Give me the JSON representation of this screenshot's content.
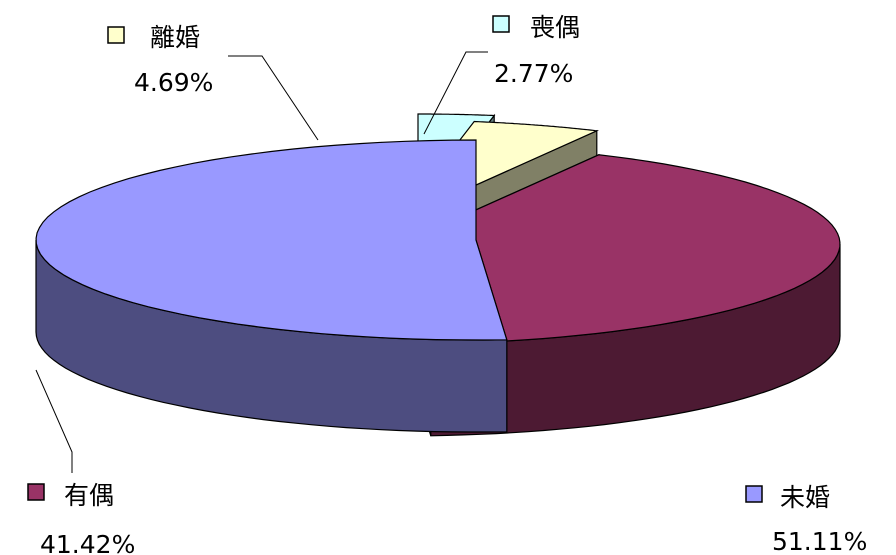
{
  "chart_data": {
    "type": "pie",
    "style": "3d-exploded",
    "title": "",
    "categories": [
      "未婚",
      "有偶",
      "離婚",
      "喪偶"
    ],
    "values": [
      51.11,
      41.42,
      4.69,
      2.77
    ],
    "value_labels": [
      "51.11%",
      "41.42%",
      "4.69%",
      "2.77%"
    ],
    "colors": {
      "top": [
        "#9999FF",
        "#993366",
        "#FFFFCC",
        "#CCFFFF"
      ],
      "side": [
        "#4D4D80",
        "#4D1A33",
        "#808066",
        "#668080"
      ]
    },
    "legend": "inline labels with color squares and leader lines"
  }
}
